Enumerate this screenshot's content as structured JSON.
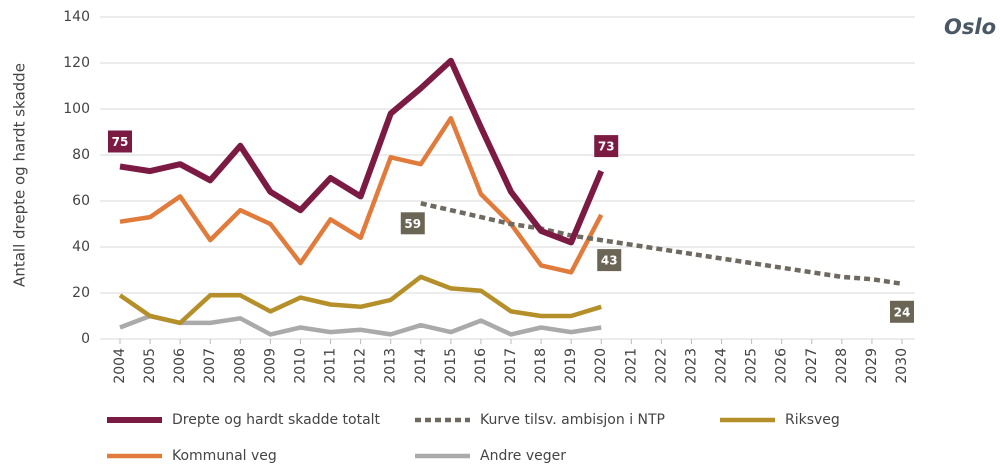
{
  "chart_data": {
    "type": "line",
    "title": "Oslo",
    "ylabel": "Antall drepte og hardt skadde",
    "x": [
      2004,
      2005,
      2006,
      2007,
      2008,
      2009,
      2010,
      2011,
      2012,
      2013,
      2014,
      2015,
      2016,
      2017,
      2018,
      2019,
      2020,
      2021,
      2022,
      2023,
      2024,
      2025,
      2026,
      2027,
      2028,
      2029,
      2030
    ],
    "xlim": [
      2004,
      2030
    ],
    "xticks": [
      2004,
      2005,
      2006,
      2007,
      2008,
      2009,
      2010,
      2011,
      2012,
      2013,
      2014,
      2015,
      2016,
      2017,
      2018,
      2019,
      2020,
      2021,
      2022,
      2023,
      2024,
      2025,
      2026,
      2027,
      2028,
      2029,
      2030
    ],
    "ylim": [
      0,
      140
    ],
    "yticks": [
      0,
      20,
      40,
      60,
      80,
      100,
      120,
      140
    ],
    "grid": true,
    "series": [
      {
        "name": "Drepte og hardt skadde totalt",
        "color": "#7b1a43",
        "values": [
          75,
          73,
          76,
          69,
          84,
          64,
          56,
          70,
          62,
          98,
          109,
          121,
          92,
          64,
          47,
          42,
          73,
          null,
          null,
          null,
          null,
          null,
          null,
          null,
          null,
          null,
          null
        ]
      },
      {
        "name": "Kurve tilsv. ambisjon i NTP",
        "color": "#6f6a60",
        "dashed": true,
        "values": [
          null,
          null,
          null,
          null,
          null,
          null,
          null,
          null,
          null,
          null,
          59,
          56,
          53,
          50,
          48,
          45,
          43,
          41,
          39,
          37,
          35,
          33,
          31,
          29,
          27,
          26,
          24
        ]
      },
      {
        "name": "Riksveg",
        "color": "#b5902a",
        "values": [
          19,
          10,
          7,
          19,
          19,
          12,
          18,
          15,
          14,
          17,
          27,
          22,
          21,
          12,
          10,
          10,
          14,
          null,
          null,
          null,
          null,
          null,
          null,
          null,
          null,
          null,
          null
        ]
      },
      {
        "name": "Kommunal veg",
        "color": "#e07b3c",
        "values": [
          51,
          53,
          62,
          43,
          56,
          50,
          33,
          52,
          44,
          79,
          76,
          96,
          63,
          50,
          32,
          29,
          54,
          null,
          null,
          null,
          null,
          null,
          null,
          null,
          null,
          null,
          null
        ]
      },
      {
        "name": "Andre veger",
        "color": "#aaaaaa",
        "values": [
          5,
          10,
          7,
          7,
          9,
          2,
          5,
          3,
          4,
          2,
          6,
          3,
          8,
          2,
          5,
          3,
          5,
          null,
          null,
          null,
          null,
          null,
          null,
          null,
          null,
          null,
          null
        ]
      }
    ]
  }
}
